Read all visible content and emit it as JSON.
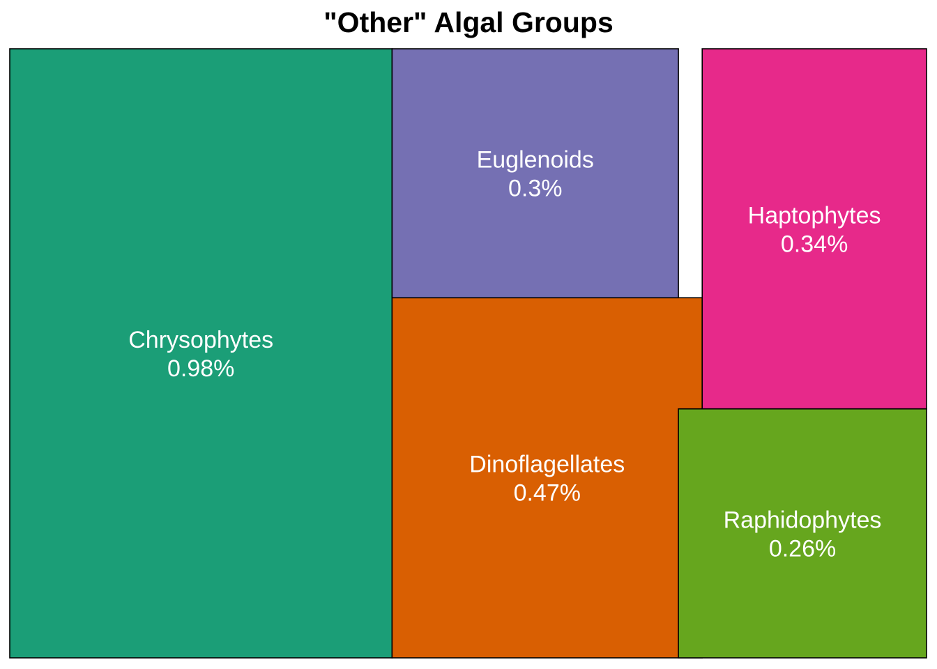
{
  "chart_data": {
    "type": "treemap",
    "title": "\"Other\" Algal Groups",
    "items": [
      {
        "name": "Chrysophytes",
        "value": 0.98,
        "label": "0.98%",
        "color": "#1B9E77"
      },
      {
        "name": "Dinoflagellates",
        "value": 0.47,
        "label": "0.47%",
        "color": "#D95F02"
      },
      {
        "name": "Haptophytes",
        "value": 0.34,
        "label": "0.34%",
        "color": "#E7298A"
      },
      {
        "name": "Euglenoids",
        "value": 0.3,
        "label": "0.3%",
        "color": "#7570B3"
      },
      {
        "name": "Raphidophytes",
        "value": 0.26,
        "label": "0.26%",
        "color": "#66A61E"
      }
    ],
    "border_color": "#000000",
    "label_color": "#ffffff"
  }
}
